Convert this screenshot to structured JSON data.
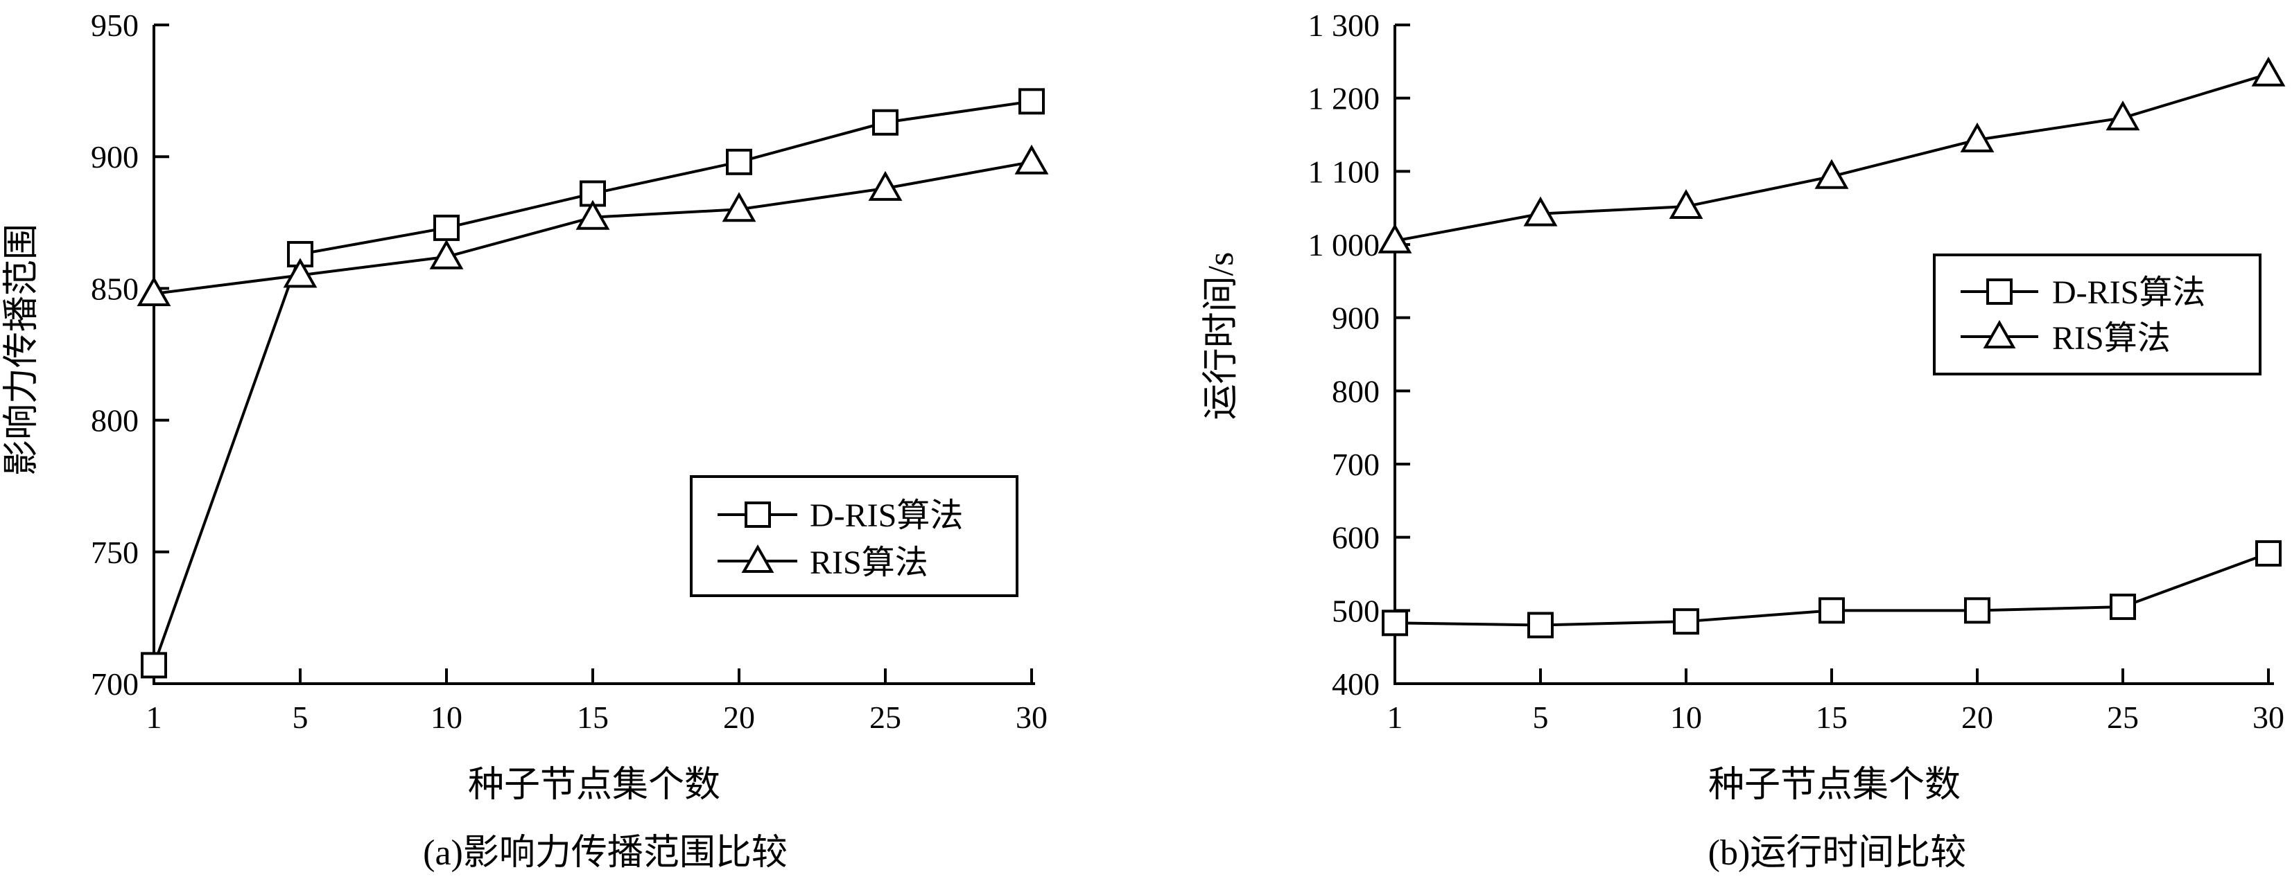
{
  "chart_data": [
    {
      "type": "line",
      "caption": "(a)影响力传播范围比较",
      "xlabel": "种子节点集个数",
      "ylabel": "影响力传播范围",
      "x": [
        1,
        5,
        10,
        15,
        20,
        25,
        30
      ],
      "xticks": [
        "1",
        "5",
        "10",
        "15",
        "20",
        "25",
        "30"
      ],
      "ylim": [
        700,
        950
      ],
      "yticks": [
        700,
        750,
        800,
        850,
        900,
        950
      ],
      "ytick_labels": [
        "700",
        "750",
        "800",
        "850",
        "900",
        "950"
      ],
      "grid": false,
      "legend_position": "center-right",
      "series": [
        {
          "name": "D-RIS算法",
          "marker": "square",
          "values": [
            707,
            863,
            873,
            886,
            898,
            913,
            921
          ]
        },
        {
          "name": "RIS算法",
          "marker": "triangle",
          "values": [
            848,
            855,
            862,
            877,
            880,
            888,
            898
          ]
        }
      ]
    },
    {
      "type": "line",
      "caption": "(b)运行时间比较",
      "xlabel": "种子节点集个数",
      "ylabel": "运行时间/s",
      "x": [
        1,
        5,
        10,
        15,
        20,
        25,
        30
      ],
      "xticks": [
        "1",
        "5",
        "10",
        "15",
        "20",
        "25",
        "30"
      ],
      "ylim": [
        400,
        1300
      ],
      "yticks": [
        400,
        500,
        600,
        700,
        800,
        900,
        1000,
        1100,
        1200,
        1300
      ],
      "ytick_labels": [
        "400",
        "500",
        "600",
        "700",
        "800",
        "900",
        "1 000",
        "1 100",
        "1 200",
        "1 300"
      ],
      "grid": false,
      "legend_position": "upper-right",
      "series": [
        {
          "name": "D-RIS算法",
          "marker": "square",
          "values": [
            483,
            480,
            485,
            500,
            500,
            505,
            578
          ]
        },
        {
          "name": "RIS算法",
          "marker": "triangle",
          "values": [
            1005,
            1042,
            1052,
            1093,
            1143,
            1173,
            1233
          ]
        }
      ]
    }
  ]
}
